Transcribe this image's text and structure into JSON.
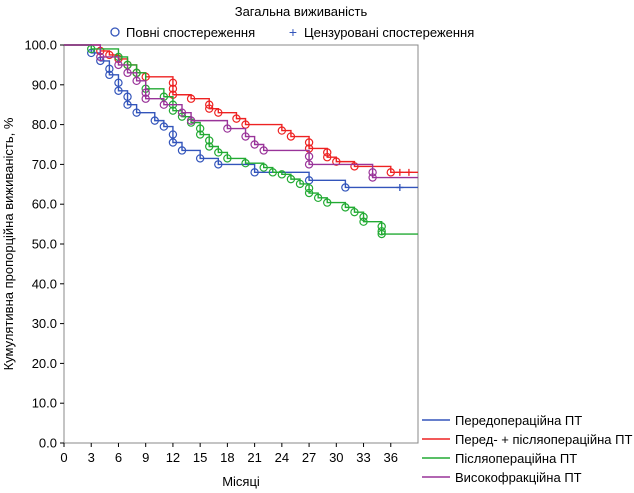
{
  "chart_data": {
    "type": "line",
    "subtype": "kaplan-meier",
    "title": "Загальна виживаність",
    "xlabel": "Місяці",
    "ylabel": "Кумулятивна пропорційна виживаність, %",
    "xlim": [
      0,
      39
    ],
    "ylim": [
      0,
      100
    ],
    "xticks": [
      "0",
      "3",
      "6",
      "9",
      "12",
      "15",
      "18",
      "21",
      "24",
      "27",
      "30",
      "33",
      "36"
    ],
    "yticks": [
      "0.0",
      "10.0",
      "20.0",
      "30.0",
      "40.0",
      "50.0",
      "60.0",
      "70.0",
      "80.0",
      "90.0",
      "100.0"
    ],
    "grid": false,
    "marker_legend": {
      "position": "top",
      "items": [
        {
          "symbol": "○",
          "label": "Повні спостереження"
        },
        {
          "symbol": "+",
          "label": "Цензуровані спостереження"
        }
      ]
    },
    "legend_position": "bottom-right",
    "series": [
      {
        "name": "Передопераційна ПТ",
        "color": "#3355bb",
        "steps": [
          [
            0,
            100
          ],
          [
            3,
            98
          ],
          [
            4,
            96
          ],
          [
            5,
            94
          ],
          [
            5,
            92.5
          ],
          [
            6,
            90.5
          ],
          [
            6,
            88.5
          ],
          [
            7,
            87
          ],
          [
            7,
            85
          ],
          [
            8,
            83
          ],
          [
            10,
            81
          ],
          [
            11,
            79.5
          ],
          [
            12,
            77.5
          ],
          [
            12,
            75.5
          ],
          [
            13,
            73.5
          ],
          [
            15,
            71.5
          ],
          [
            17,
            70
          ],
          [
            21,
            68
          ],
          [
            27,
            66
          ],
          [
            31,
            64.2
          ],
          [
            39,
            64.2
          ]
        ],
        "events": [
          [
            3,
            98
          ],
          [
            4,
            96
          ],
          [
            5,
            94
          ],
          [
            5,
            92.5
          ],
          [
            6,
            90.5
          ],
          [
            6,
            88.5
          ],
          [
            7,
            87
          ],
          [
            7,
            85
          ],
          [
            8,
            83
          ],
          [
            10,
            81
          ],
          [
            11,
            79.5
          ],
          [
            12,
            77.5
          ],
          [
            12,
            75.5
          ],
          [
            13,
            73.5
          ],
          [
            15,
            71.5
          ],
          [
            17,
            70
          ],
          [
            21,
            68
          ],
          [
            27,
            66
          ],
          [
            31,
            64.2
          ]
        ],
        "censored": [
          [
            37,
            64.2
          ]
        ]
      },
      {
        "name": "Перед- + післяопераційна ПТ",
        "color": "#ee2222",
        "steps": [
          [
            0,
            100
          ],
          [
            4,
            98.5
          ],
          [
            5,
            97.5
          ],
          [
            6,
            96.5
          ],
          [
            7,
            95
          ],
          [
            8,
            93
          ],
          [
            9,
            92
          ],
          [
            12,
            90.5
          ],
          [
            12,
            89
          ],
          [
            12,
            87.5
          ],
          [
            14,
            86.5
          ],
          [
            16,
            85
          ],
          [
            16,
            84
          ],
          [
            17,
            83
          ],
          [
            19,
            81.5
          ],
          [
            20,
            80
          ],
          [
            24,
            78.5
          ],
          [
            25,
            77
          ],
          [
            27,
            75.5
          ],
          [
            27,
            74
          ],
          [
            29,
            73
          ],
          [
            29,
            71.8
          ],
          [
            30,
            70.7
          ],
          [
            32,
            69.5
          ],
          [
            36,
            68
          ],
          [
            39,
            68
          ]
        ],
        "events": [
          [
            4,
            98.5
          ],
          [
            5,
            97.5
          ],
          [
            6,
            96.5
          ],
          [
            7,
            95
          ],
          [
            8,
            93
          ],
          [
            9,
            92
          ],
          [
            12,
            90.5
          ],
          [
            12,
            89
          ],
          [
            12,
            87.5
          ],
          [
            14,
            86.5
          ],
          [
            16,
            85
          ],
          [
            16,
            84
          ],
          [
            17,
            83
          ],
          [
            19,
            81.5
          ],
          [
            20,
            80
          ],
          [
            24,
            78.5
          ],
          [
            25,
            77
          ],
          [
            27,
            75.5
          ],
          [
            27,
            74
          ],
          [
            29,
            73
          ],
          [
            29,
            71.8
          ],
          [
            30,
            70.7
          ],
          [
            32,
            69.5
          ],
          [
            36,
            68
          ]
        ],
        "censored": [
          [
            37,
            68
          ],
          [
            38,
            68
          ]
        ]
      },
      {
        "name": "Післяопераційна ПТ",
        "color": "#22aa33",
        "steps": [
          [
            0,
            100
          ],
          [
            3,
            99
          ],
          [
            6,
            97
          ],
          [
            7,
            95
          ],
          [
            8,
            93
          ],
          [
            9,
            89
          ],
          [
            11,
            87
          ],
          [
            12,
            85
          ],
          [
            12,
            83.5
          ],
          [
            13,
            82
          ],
          [
            14,
            80.5
          ],
          [
            15,
            79
          ],
          [
            15,
            77.5
          ],
          [
            16,
            76
          ],
          [
            16,
            74.5
          ],
          [
            17,
            73
          ],
          [
            18,
            71.5
          ],
          [
            20,
            70.3
          ],
          [
            22,
            69.2
          ],
          [
            23,
            68
          ],
          [
            24,
            67.5
          ],
          [
            25,
            66.3
          ],
          [
            26,
            65.1
          ],
          [
            27,
            64
          ],
          [
            27,
            62.8
          ],
          [
            28,
            61.6
          ],
          [
            29,
            60.4
          ],
          [
            31,
            59.2
          ],
          [
            32,
            58
          ],
          [
            33,
            56.8
          ],
          [
            33,
            55.6
          ],
          [
            35,
            54.4
          ],
          [
            35,
            53.2
          ],
          [
            35,
            52.5
          ],
          [
            39,
            52.5
          ]
        ],
        "events": [
          [
            3,
            99
          ],
          [
            6,
            97
          ],
          [
            7,
            95
          ],
          [
            8,
            93
          ],
          [
            9,
            89
          ],
          [
            11,
            87
          ],
          [
            12,
            85
          ],
          [
            12,
            83.5
          ],
          [
            13,
            82
          ],
          [
            14,
            80.5
          ],
          [
            15,
            79
          ],
          [
            15,
            77.5
          ],
          [
            16,
            76
          ],
          [
            16,
            74.5
          ],
          [
            17,
            73
          ],
          [
            18,
            71.5
          ],
          [
            20,
            70.3
          ],
          [
            22,
            69.2
          ],
          [
            23,
            68
          ],
          [
            24,
            67.5
          ],
          [
            25,
            66.3
          ],
          [
            26,
            65.1
          ],
          [
            27,
            64
          ],
          [
            27,
            62.8
          ],
          [
            28,
            61.6
          ],
          [
            29,
            60.4
          ],
          [
            31,
            59.2
          ],
          [
            32,
            58
          ],
          [
            33,
            56.8
          ],
          [
            33,
            55.6
          ],
          [
            35,
            54.4
          ],
          [
            35,
            53.2
          ],
          [
            35,
            52.5
          ]
        ],
        "censored": []
      },
      {
        "name": "Високофракційна ПТ",
        "color": "#993399",
        "steps": [
          [
            0,
            100
          ],
          [
            4,
            97
          ],
          [
            6,
            95
          ],
          [
            7,
            93
          ],
          [
            8,
            91
          ],
          [
            9,
            88
          ],
          [
            9,
            86.5
          ],
          [
            11,
            85
          ],
          [
            13,
            83
          ],
          [
            14,
            81
          ],
          [
            18,
            79
          ],
          [
            20,
            77
          ],
          [
            21,
            75
          ],
          [
            22,
            73.5
          ],
          [
            27,
            72
          ],
          [
            27,
            70
          ],
          [
            34,
            68
          ],
          [
            34,
            66.7
          ],
          [
            39,
            66.7
          ]
        ],
        "events": [
          [
            4,
            97
          ],
          [
            6,
            95
          ],
          [
            7,
            93
          ],
          [
            8,
            91
          ],
          [
            9,
            88
          ],
          [
            9,
            86.5
          ],
          [
            11,
            85
          ],
          [
            13,
            83
          ],
          [
            14,
            81
          ],
          [
            18,
            79
          ],
          [
            20,
            77
          ],
          [
            21,
            75
          ],
          [
            22,
            73.5
          ],
          [
            27,
            72
          ],
          [
            27,
            70
          ],
          [
            34,
            68
          ],
          [
            34,
            66.7
          ]
        ],
        "censored": []
      }
    ]
  }
}
